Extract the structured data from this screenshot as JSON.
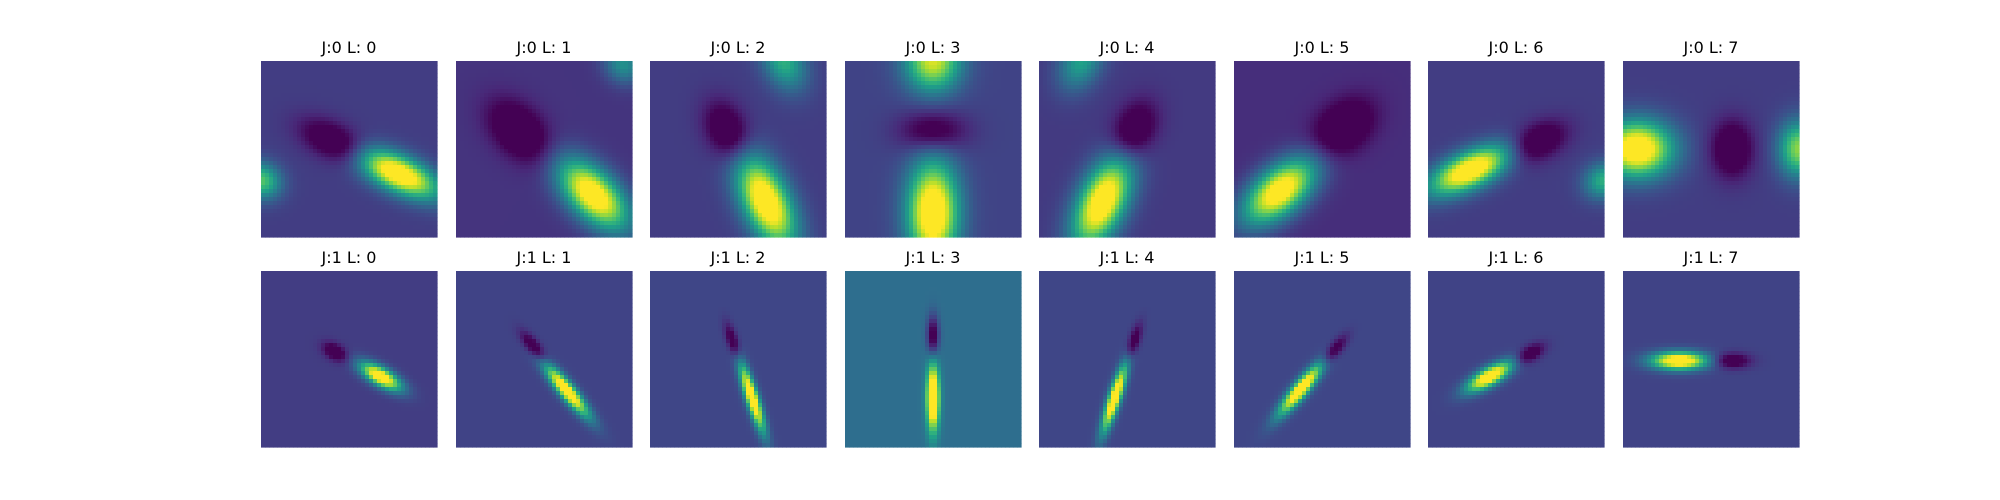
{
  "chart_data": {
    "type": "heatmap",
    "colormap": "viridis",
    "layout": {
      "rows": 2,
      "cols": 8
    },
    "panels": [
      {
        "title": "J:0 L: 0",
        "background": 0.18,
        "blobs": [
          {
            "x": 0.78,
            "y": 0.64,
            "amp": 1.0,
            "sigma_long": 0.17,
            "sigma_short": 0.07,
            "angle_deg": 25
          },
          {
            "x": 0.42,
            "y": 0.46,
            "amp": -0.35,
            "sigma_long": 0.14,
            "sigma_short": 0.07,
            "angle_deg": 25
          },
          {
            "x": 0.0,
            "y": 0.68,
            "amp": 0.55,
            "sigma_long": 0.08,
            "sigma_short": 0.07,
            "angle_deg": 25
          }
        ]
      },
      {
        "title": "J:0 L: 1",
        "background": 0.15,
        "blobs": [
          {
            "x": 0.78,
            "y": 0.76,
            "amp": 1.0,
            "sigma_long": 0.17,
            "sigma_short": 0.09,
            "angle_deg": 45
          },
          {
            "x": 0.36,
            "y": 0.4,
            "amp": -0.35,
            "sigma_long": 0.14,
            "sigma_short": 0.09,
            "angle_deg": 45
          },
          {
            "x": 0.95,
            "y": 0.02,
            "amp": 0.35,
            "sigma_long": 0.08,
            "sigma_short": 0.07,
            "angle_deg": 45
          }
        ]
      },
      {
        "title": "J:0 L: 2",
        "background": 0.18,
        "blobs": [
          {
            "x": 0.66,
            "y": 0.8,
            "amp": 1.0,
            "sigma_long": 0.19,
            "sigma_short": 0.09,
            "angle_deg": 65
          },
          {
            "x": 0.44,
            "y": 0.4,
            "amp": -0.35,
            "sigma_long": 0.12,
            "sigma_short": 0.08,
            "angle_deg": 65
          },
          {
            "x": 0.76,
            "y": 0.0,
            "amp": 0.45,
            "sigma_long": 0.12,
            "sigma_short": 0.08,
            "angle_deg": 65
          }
        ]
      },
      {
        "title": "J:0 L: 3",
        "background": 0.2,
        "blobs": [
          {
            "x": 0.5,
            "y": 0.86,
            "amp": 1.0,
            "sigma_long": 0.2,
            "sigma_short": 0.1,
            "angle_deg": 90
          },
          {
            "x": 0.5,
            "y": 0.0,
            "amp": 0.75,
            "sigma_long": 0.12,
            "sigma_short": 0.11,
            "angle_deg": 90
          },
          {
            "x": 0.5,
            "y": 0.4,
            "amp": -0.3,
            "sigma_long": 0.08,
            "sigma_short": 0.13,
            "angle_deg": 90
          }
        ]
      },
      {
        "title": "J:0 L: 4",
        "background": 0.17,
        "blobs": [
          {
            "x": 0.36,
            "y": 0.8,
            "amp": 1.0,
            "sigma_long": 0.19,
            "sigma_short": 0.09,
            "angle_deg": 115
          },
          {
            "x": 0.54,
            "y": 0.4,
            "amp": -0.35,
            "sigma_long": 0.12,
            "sigma_short": 0.08,
            "angle_deg": 115
          },
          {
            "x": 0.24,
            "y": 0.0,
            "amp": 0.4,
            "sigma_long": 0.12,
            "sigma_short": 0.08,
            "angle_deg": 115
          }
        ]
      },
      {
        "title": "J:0 L: 5",
        "background": 0.13,
        "blobs": [
          {
            "x": 0.26,
            "y": 0.74,
            "amp": 1.0,
            "sigma_long": 0.17,
            "sigma_short": 0.09,
            "angle_deg": 140
          },
          {
            "x": 0.62,
            "y": 0.38,
            "amp": -0.35,
            "sigma_long": 0.13,
            "sigma_short": 0.09,
            "angle_deg": 140
          }
        ]
      },
      {
        "title": "J:0 L: 6",
        "background": 0.18,
        "blobs": [
          {
            "x": 0.24,
            "y": 0.62,
            "amp": 1.0,
            "sigma_long": 0.17,
            "sigma_short": 0.07,
            "angle_deg": 155
          },
          {
            "x": 0.62,
            "y": 0.46,
            "amp": -0.35,
            "sigma_long": 0.12,
            "sigma_short": 0.07,
            "angle_deg": 155
          },
          {
            "x": 1.0,
            "y": 0.68,
            "amp": 0.45,
            "sigma_long": 0.08,
            "sigma_short": 0.07,
            "angle_deg": 155
          }
        ]
      },
      {
        "title": "J:0 L: 7",
        "background": 0.18,
        "blobs": [
          {
            "x": 0.08,
            "y": 0.5,
            "amp": 1.0,
            "sigma_long": 0.14,
            "sigma_short": 0.11,
            "angle_deg": 0
          },
          {
            "x": 0.62,
            "y": 0.5,
            "amp": -0.35,
            "sigma_long": 0.08,
            "sigma_short": 0.11,
            "angle_deg": 0
          },
          {
            "x": 1.0,
            "y": 0.5,
            "amp": 0.65,
            "sigma_long": 0.08,
            "sigma_short": 0.11,
            "angle_deg": 0
          }
        ]
      },
      {
        "title": "J:1 L: 0",
        "background": 0.18,
        "blobs": [
          {
            "x": 0.68,
            "y": 0.6,
            "amp": 1.0,
            "sigma_long": 0.09,
            "sigma_short": 0.035,
            "angle_deg": 30
          },
          {
            "x": 0.42,
            "y": 0.46,
            "amp": -0.32,
            "sigma_long": 0.05,
            "sigma_short": 0.03,
            "angle_deg": 30
          }
        ]
      },
      {
        "title": "J:1 L: 1",
        "background": 0.2,
        "blobs": [
          {
            "x": 0.63,
            "y": 0.68,
            "amp": 1.0,
            "sigma_long": 0.13,
            "sigma_short": 0.03,
            "angle_deg": 50
          },
          {
            "x": 0.44,
            "y": 0.43,
            "amp": -0.32,
            "sigma_long": 0.07,
            "sigma_short": 0.025,
            "angle_deg": 50
          }
        ]
      },
      {
        "title": "J:1 L: 2",
        "background": 0.21,
        "blobs": [
          {
            "x": 0.58,
            "y": 0.72,
            "amp": 1.0,
            "sigma_long": 0.14,
            "sigma_short": 0.025,
            "angle_deg": 72
          },
          {
            "x": 0.47,
            "y": 0.4,
            "amp": -0.32,
            "sigma_long": 0.07,
            "sigma_short": 0.022,
            "angle_deg": 72
          }
        ]
      },
      {
        "title": "J:1 L: 3",
        "background": 0.36,
        "blobs": [
          {
            "x": 0.5,
            "y": 0.72,
            "amp": 1.0,
            "sigma_long": 0.13,
            "sigma_short": 0.025,
            "angle_deg": 90
          },
          {
            "x": 0.5,
            "y": 0.37,
            "amp": -0.45,
            "sigma_long": 0.08,
            "sigma_short": 0.024,
            "angle_deg": 90
          }
        ]
      },
      {
        "title": "J:1 L: 4",
        "background": 0.21,
        "blobs": [
          {
            "x": 0.43,
            "y": 0.72,
            "amp": 1.0,
            "sigma_long": 0.14,
            "sigma_short": 0.025,
            "angle_deg": 108
          },
          {
            "x": 0.54,
            "y": 0.4,
            "amp": -0.32,
            "sigma_long": 0.07,
            "sigma_short": 0.022,
            "angle_deg": 108
          }
        ]
      },
      {
        "title": "J:1 L: 5",
        "background": 0.21,
        "blobs": [
          {
            "x": 0.38,
            "y": 0.67,
            "amp": 1.0,
            "sigma_long": 0.13,
            "sigma_short": 0.03,
            "angle_deg": 130
          },
          {
            "x": 0.57,
            "y": 0.45,
            "amp": -0.32,
            "sigma_long": 0.07,
            "sigma_short": 0.025,
            "angle_deg": 130
          }
        ]
      },
      {
        "title": "J:1 L: 6",
        "background": 0.2,
        "blobs": [
          {
            "x": 0.35,
            "y": 0.6,
            "amp": 1.0,
            "sigma_long": 0.1,
            "sigma_short": 0.035,
            "angle_deg": 150
          },
          {
            "x": 0.58,
            "y": 0.47,
            "amp": -0.32,
            "sigma_long": 0.06,
            "sigma_short": 0.03,
            "angle_deg": 150
          }
        ]
      },
      {
        "title": "J:1 L: 7",
        "background": 0.2,
        "blobs": [
          {
            "x": 0.32,
            "y": 0.51,
            "amp": 1.0,
            "sigma_long": 0.11,
            "sigma_short": 0.035,
            "angle_deg": 0
          },
          {
            "x": 0.62,
            "y": 0.51,
            "amp": -0.32,
            "sigma_long": 0.07,
            "sigma_short": 0.03,
            "angle_deg": 0
          }
        ]
      }
    ]
  }
}
